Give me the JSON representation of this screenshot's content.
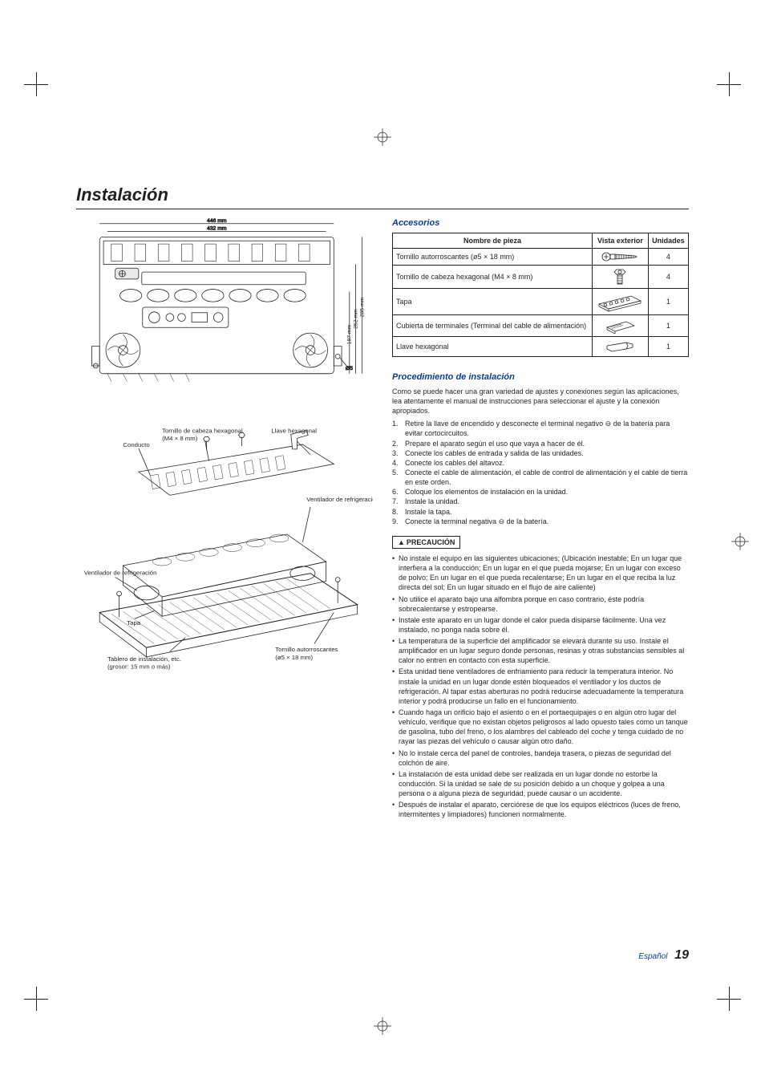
{
  "title": "Instalación",
  "diagram1": {
    "width_outer": "446 mm",
    "width_inner": "432 mm",
    "heights": [
      "187 mm",
      "252 mm",
      "285 mm"
    ],
    "hole": "Ø5"
  },
  "diagram2": {
    "conducto": "Conducto",
    "tornillo_hex": "Tornillo de cabeza hexagonal",
    "tornillo_hex_size": "(M4 × 8 mm)",
    "llave": "Llave hexagonal",
    "vent1": "Ventilador de refrigeración",
    "vent2": "Ventilador de refrigeración",
    "tapa": "Tapa",
    "tablero": "Tablero de instalación, etc.",
    "tablero_size": "(grosor: 15 mm o más)",
    "tornillo_auto": "Tornillo autorroscantes",
    "tornillo_auto_size": "(ø5 × 18 mm)"
  },
  "accessories": {
    "heading": "Accesorios",
    "headers": [
      "Nombre de pieza",
      "Vista exterior",
      "Unidades"
    ],
    "rows": [
      {
        "name": "Tornillo autorroscantes (ø5 × 18 mm)",
        "icon": "screw",
        "units": "4"
      },
      {
        "name": "Tornillo de cabeza hexagonal (M4 × 8 mm)",
        "icon": "hexbolt",
        "units": "4"
      },
      {
        "name": "Tapa",
        "icon": "cover",
        "units": "1"
      },
      {
        "name": "Cubierta de terminales (Terminal del cable de alimentación)",
        "icon": "termcover",
        "units": "1"
      },
      {
        "name": "Llave hexagonal",
        "icon": "hexkey",
        "units": "1"
      }
    ]
  },
  "procedure": {
    "heading": "Procedimiento de instalación",
    "intro": "Como se puede hacer una gran variedad de ajustes y conexiones según las aplicaciones, lea atentamente el manual de instrucciones para seleccionar el ajuste y la conexión apropiados.",
    "steps": [
      "Retire la llave de encendido y desconecte el terminal negativo ⊖ de la batería para evitar cortocircuitos.",
      "Prepare el aparato según el uso que vaya a hacer de él.",
      "Conecte los cables de entrada y salida de las unidades.",
      "Conecte los cables del altavoz.",
      "Conecte el cable de alimentación, el cable de control de alimentación y el cable de tierra en este orden.",
      "Coloque los elementos de instalación en la unidad.",
      "Instale la unidad.",
      "Instale la tapa.",
      "Conecte la terminal negativa ⊖ de la batería."
    ],
    "caution_label": "PRECAUCIÓN",
    "cautions": [
      "No instale el equipo en las siguientes ubicaciones; (Ubicación inestable; En un lugar que interfiera a la conducción; En un lugar en el que pueda mojarse; En un lugar con exceso de polvo; En un lugar en el que pueda recalentarse; En un lugar en el que reciba la luz directa del sol; En un lugar situado en el flujo de aire caliente)",
      "No utilice el aparato bajo una alfombra porque en caso contrario, éste podría sobrecalentarse y estropearse.",
      "Instale este aparato en un lugar donde el calor pueda disiparse fácilmente. Una vez instalado, no ponga nada sobre él.",
      "La temperatura de la superficie del amplificador se elevará durante su uso. Instale el amplificador en un lugar seguro donde personas, resinas y otras substancias sensibles al calor no entren en contacto con esta superficie.",
      "Esta unidad tiene ventiladores de enfriamiento para reducir la temperatura interior. No instale la unidad en un lugar donde estén bloqueados el ventilador y los ductos de refrigeración. Al tapar estas aberturas no podrá reducirse adecuadamente la temperatura interior y podrá producirse un fallo en el funcionamiento.",
      "Cuando haga un orificio bajo el asiento o en el portaequipajes o en algún otro lugar del vehículo, verifique que no existan objetos peligrosos al lado opuesto tales como un tanque de gasolina, tubo del freno, o los alambres del cableado del coche y tenga cuidado de no rayar las piezas del vehículo o causar algún otro daño.",
      "No lo instale cerca del panel de controles, bandeja trasera, o piezas de seguridad del colchón de aire.",
      "La instalación de esta unidad debe ser realizada en un lugar donde no estorbe la conducción. Si la unidad se sale de su posición debido a un choque y golpea a una persona o a alguna pieza de seguridad, puede causar o un accidente.",
      "Después de instalar el aparato, cerciórese de que los equipos eléctricos (luces de freno, intermitentes y limpiadores) funcionen normalmente."
    ]
  },
  "footer": {
    "lang": "Español",
    "page": "19"
  },
  "colors": {
    "accent": "#0b3d8c",
    "text": "#231f20"
  }
}
